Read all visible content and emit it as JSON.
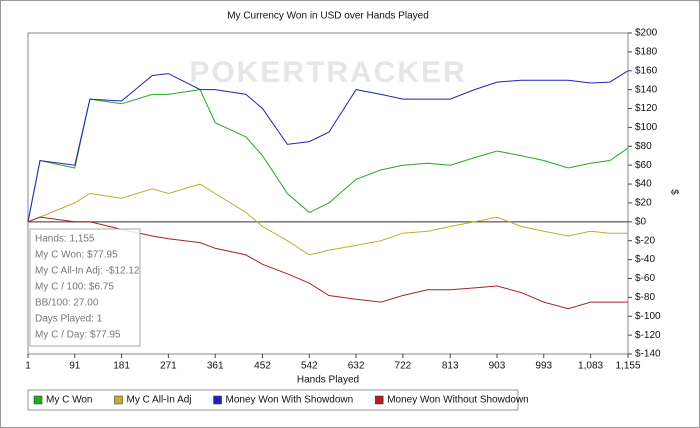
{
  "chart_data": {
    "type": "line",
    "title": "My Currency Won in USD over Hands Played",
    "watermark": "POKERTRACKER",
    "xlabel": "Hands Played",
    "ylabel": "$",
    "x": [
      1,
      24,
      91,
      120,
      181,
      240,
      271,
      332,
      361,
      420,
      452,
      500,
      542,
      580,
      632,
      680,
      722,
      770,
      813,
      860,
      903,
      950,
      993,
      1040,
      1083,
      1120,
      1155
    ],
    "series": [
      {
        "name": "My C Won",
        "color": "#22aa22",
        "values": [
          0,
          65,
          57,
          130,
          125,
          135,
          135,
          140,
          105,
          90,
          70,
          30,
          10,
          20,
          45,
          55,
          60,
          62,
          60,
          68,
          75,
          70,
          65,
          57,
          62,
          65,
          77.95
        ]
      },
      {
        "name": "My C All-In Adj",
        "color": "#b8b030",
        "values": [
          0,
          5,
          20,
          30,
          25,
          35,
          30,
          40,
          30,
          10,
          -5,
          -20,
          -35,
          -30,
          -25,
          -20,
          -12,
          -10,
          -5,
          0,
          5,
          -5,
          -10,
          -15,
          -10,
          -12,
          -12.12
        ]
      },
      {
        "name": "Money Won With Showdown",
        "color": "#2222bb",
        "values": [
          0,
          65,
          60,
          130,
          128,
          155,
          157,
          140,
          140,
          135,
          120,
          82,
          85,
          95,
          140,
          135,
          130,
          130,
          130,
          140,
          148,
          150,
          150,
          150,
          147,
          148,
          160
        ]
      },
      {
        "name": "Money Won Without Showdown",
        "color": "#aa2222",
        "values": [
          0,
          5,
          0,
          0,
          -8,
          -15,
          -18,
          -22,
          -28,
          -35,
          -45,
          -55,
          -65,
          -78,
          -82,
          -85,
          -78,
          -72,
          -72,
          -70,
          -68,
          -75,
          -85,
          -92,
          -85,
          -85,
          -85
        ]
      }
    ],
    "xlim": [
      1,
      1155
    ],
    "xticks": [
      1,
      91,
      181,
      271,
      361,
      452,
      542,
      632,
      722,
      813,
      903,
      993,
      {
        "value": 1083,
        "label": "1,083"
      },
      {
        "value": 1155,
        "label": "1,155"
      }
    ],
    "ylim": [
      -140,
      200
    ],
    "yticks": [
      {
        "value": 200,
        "label": "$200"
      },
      {
        "value": 180,
        "label": "$180"
      },
      {
        "value": 160,
        "label": "$160"
      },
      {
        "value": 140,
        "label": "$140"
      },
      {
        "value": 120,
        "label": "$120"
      },
      {
        "value": 100,
        "label": "$100"
      },
      {
        "value": 80,
        "label": "$80"
      },
      {
        "value": 60,
        "label": "$60"
      },
      {
        "value": 40,
        "label": "$40"
      },
      {
        "value": 20,
        "label": "$20"
      },
      {
        "value": 0,
        "label": "$0"
      },
      {
        "value": -20,
        "label": "$-20"
      },
      {
        "value": -40,
        "label": "$-40"
      },
      {
        "value": -60,
        "label": "$-60"
      },
      {
        "value": -80,
        "label": "$-80"
      },
      {
        "value": -100,
        "label": "$-100"
      },
      {
        "value": -120,
        "label": "$-120"
      },
      {
        "value": -140,
        "label": "$-140"
      }
    ],
    "tooltip": [
      "Hands: 1,155",
      "My C Won: $77.95",
      "My C All-In Adj: -$12.12",
      "My C / 100: $6.75",
      "BB/100: 27.00",
      "Days Played: 1",
      "My C / Day: $77.95"
    ]
  }
}
